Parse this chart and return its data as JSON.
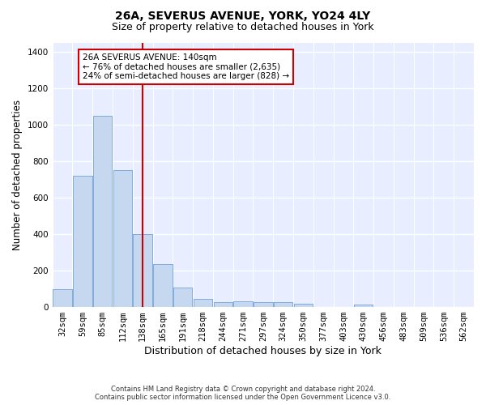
{
  "title1": "26A, SEVERUS AVENUE, YORK, YO24 4LY",
  "title2": "Size of property relative to detached houses in York",
  "xlabel": "Distribution of detached houses by size in York",
  "ylabel": "Number of detached properties",
  "categories": [
    "32sqm",
    "59sqm",
    "85sqm",
    "112sqm",
    "138sqm",
    "165sqm",
    "191sqm",
    "218sqm",
    "244sqm",
    "271sqm",
    "297sqm",
    "324sqm",
    "350sqm",
    "377sqm",
    "403sqm",
    "430sqm",
    "456sqm",
    "483sqm",
    "509sqm",
    "536sqm",
    "562sqm"
  ],
  "values": [
    100,
    720,
    1050,
    750,
    400,
    235,
    105,
    45,
    25,
    30,
    25,
    25,
    20,
    0,
    0,
    15,
    0,
    0,
    0,
    0,
    0
  ],
  "bar_color": "#c5d8f0",
  "bar_edge_color": "#7aaadd",
  "highlight_x": "138sqm",
  "highlight_line_color": "#cc0000",
  "annotation_text": "26A SEVERUS AVENUE: 140sqm\n← 76% of detached houses are smaller (2,635)\n24% of semi-detached houses are larger (828) →",
  "annotation_box_color": "#ffffff",
  "annotation_box_edge_color": "#cc0000",
  "footer1": "Contains HM Land Registry data © Crown copyright and database right 2024.",
  "footer2": "Contains public sector information licensed under the Open Government Licence v3.0.",
  "ylim": [
    0,
    1450
  ],
  "yticks": [
    0,
    200,
    400,
    600,
    800,
    1000,
    1200,
    1400
  ],
  "background_color": "#e8eeff",
  "grid_color": "#ffffff",
  "title1_fontsize": 10,
  "title2_fontsize": 9,
  "tick_fontsize": 7.5,
  "ylabel_fontsize": 8.5,
  "xlabel_fontsize": 9
}
